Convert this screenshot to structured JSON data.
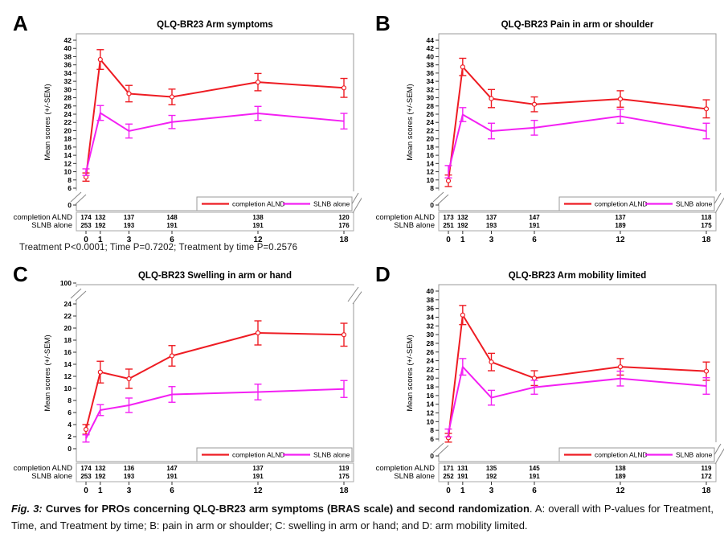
{
  "pvalues_line": "Treatment P<0.0001; Time P=0.7202; Treatment by time P=0.2576",
  "caption": {
    "fig_label": "Fig. 3:",
    "bold": " Curves for PROs concerning QLQ-BR23 arm symptoms (BRAS scale) and second randomization",
    "rest": ". A: overall with P-values for Treatment, Time, and Treatment by time; B: pain in arm or shoulder; C: swelling in arm or hand; and D: arm mobility limited."
  },
  "legend": {
    "alnd_label": "completion ALND",
    "slnb_label": "SLNB alone"
  },
  "row_labels": [
    "completion ALND",
    "SLNB alone"
  ],
  "colors": {
    "alnd": "#ee1c23",
    "slnb": "#f320f3",
    "frame": "#9a9a9a",
    "tick": "#333333",
    "table_border": "#aaaaaa",
    "break_mark": "#888888"
  },
  "chart_data": [
    {
      "type": "line",
      "letter": "A",
      "title": "QLQ-BR23 Arm symptoms",
      "xlabel": "",
      "ylabel": "Mean scores (+/-SEM)",
      "x": [
        0,
        1,
        3,
        6,
        12,
        18
      ],
      "y_axis": {
        "top_tick": 42,
        "bottom_tick": 6,
        "step": 2,
        "break": "bottom",
        "zero_label": "0"
      },
      "series": [
        {
          "name": "completion ALND",
          "values": [
            8.7,
            37.3,
            29.0,
            28.2,
            31.8,
            30.4
          ],
          "sem": [
            1.0,
            2.4,
            2.0,
            1.9,
            2.1,
            2.3
          ]
        },
        {
          "name": "SLNB alone",
          "values": [
            9.9,
            24.3,
            19.9,
            22.1,
            24.2,
            22.3
          ],
          "sem": [
            0.8,
            1.8,
            1.7,
            1.6,
            1.7,
            1.9
          ]
        }
      ],
      "n_table": {
        "completion ALND": [
          174,
          132,
          137,
          148,
          138,
          120
        ],
        "SLNB alone": [
          253,
          192,
          193,
          191,
          191,
          176
        ]
      }
    },
    {
      "type": "line",
      "letter": "B",
      "title": "QLQ-BR23 Pain in arm or shoulder",
      "xlabel": "",
      "ylabel": "Mean scores (+/-SEM)",
      "x": [
        0,
        1,
        3,
        6,
        12,
        18
      ],
      "y_axis": {
        "top_tick": 44,
        "bottom_tick": 8,
        "step": 2,
        "break": "bottom",
        "zero_label": "0"
      },
      "series": [
        {
          "name": "completion ALND",
          "values": [
            9.8,
            37.5,
            29.8,
            28.4,
            29.7,
            27.3
          ],
          "sem": [
            1.4,
            2.1,
            2.2,
            1.8,
            2.0,
            2.2
          ]
        },
        {
          "name": "SLNB alone",
          "values": [
            12.0,
            25.9,
            21.9,
            22.7,
            25.5,
            21.9
          ],
          "sem": [
            1.5,
            1.7,
            1.9,
            1.8,
            1.7,
            1.9
          ]
        }
      ],
      "n_table": {
        "completion ALND": [
          173,
          132,
          137,
          147,
          137,
          118
        ],
        "SLNB alone": [
          251,
          192,
          193,
          191,
          189,
          175
        ]
      }
    },
    {
      "type": "line",
      "letter": "C",
      "title": "QLQ-BR23 Swelling in arm or hand",
      "xlabel": "",
      "ylabel": "Mean scores (+/-SEM)",
      "x": [
        0,
        1,
        3,
        6,
        12,
        18
      ],
      "y_axis": {
        "top_tick": 24,
        "bottom_tick": 0,
        "step": 2,
        "break": "top",
        "break_top_tick": 100
      },
      "series": [
        {
          "name": "completion ALND",
          "values": [
            3.2,
            12.7,
            11.6,
            15.4,
            19.2,
            18.9
          ],
          "sem": [
            0.8,
            1.8,
            1.6,
            1.7,
            2.0,
            1.9
          ]
        },
        {
          "name": "SLNB alone",
          "values": [
            1.7,
            6.4,
            7.2,
            9.0,
            9.4,
            9.9
          ],
          "sem": [
            0.6,
            0.9,
            1.2,
            1.3,
            1.3,
            1.4
          ]
        }
      ],
      "n_table": {
        "completion ALND": [
          174,
          132,
          136,
          147,
          137,
          119
        ],
        "SLNB alone": [
          253,
          192,
          193,
          191,
          191,
          175
        ]
      }
    },
    {
      "type": "line",
      "letter": "D",
      "title": "QLQ-BR23 Arm mobility limited",
      "xlabel": "",
      "ylabel": "Mean scores (+/-SEM)",
      "x": [
        0,
        1,
        3,
        6,
        12,
        18
      ],
      "y_axis": {
        "top_tick": 40,
        "bottom_tick": 6,
        "step": 2,
        "break": "bottom",
        "zero_label": "0"
      },
      "series": [
        {
          "name": "completion ALND",
          "values": [
            6.3,
            34.5,
            23.7,
            20.0,
            22.6,
            21.6
          ],
          "sem": [
            1.0,
            2.2,
            2.0,
            1.7,
            1.9,
            2.1
          ]
        },
        {
          "name": "SLNB alone",
          "values": [
            7.4,
            22.6,
            15.5,
            17.9,
            19.9,
            18.2
          ],
          "sem": [
            0.9,
            1.9,
            1.7,
            1.6,
            1.7,
            1.9
          ]
        }
      ],
      "n_table": {
        "completion ALND": [
          171,
          131,
          135,
          145,
          138,
          119
        ],
        "SLNB alone": [
          252,
          191,
          192,
          191,
          189,
          172
        ]
      }
    }
  ]
}
